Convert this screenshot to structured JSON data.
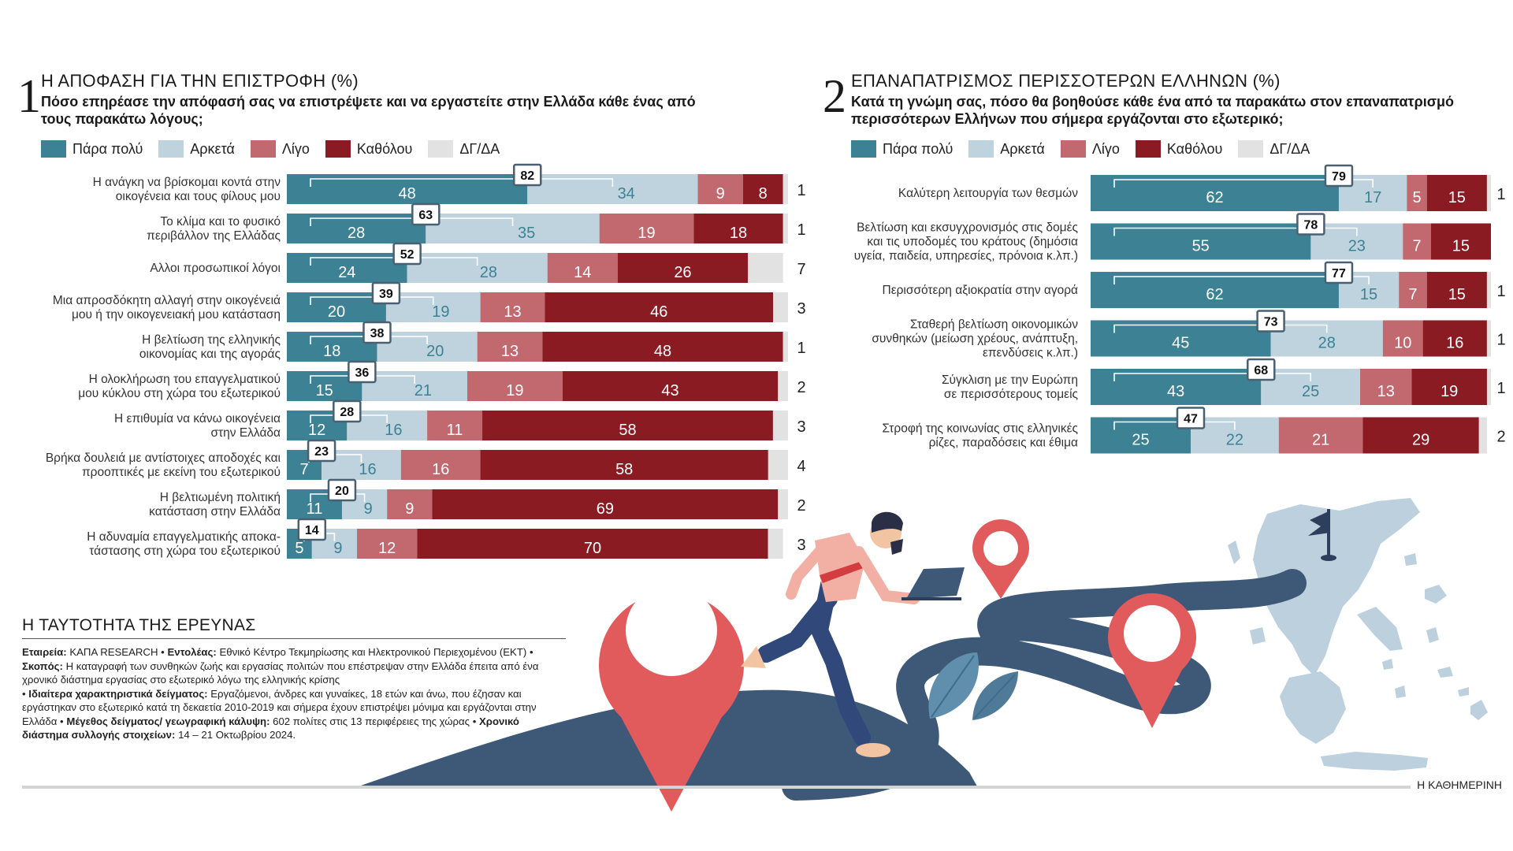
{
  "colors": {
    "very_much": "#3c8194",
    "quite": "#bfd3de",
    "little": "#c1696f",
    "not_at_all": "#8a1b22",
    "dk": "#e2e2e2",
    "label_on_light": "#3c8194",
    "dark_blue": "#3e5878",
    "pin_red": "#e15a5c"
  },
  "legend": {
    "items": [
      {
        "key": "very_much",
        "label": "Πάρα πολύ"
      },
      {
        "key": "quite",
        "label": "Αρκετά"
      },
      {
        "key": "little",
        "label": "Λίγο"
      },
      {
        "key": "not_at_all",
        "label": "Καθόλου"
      },
      {
        "key": "dk",
        "label": "ΔΓ/ΔΑ"
      }
    ]
  },
  "panel1": {
    "number": "1",
    "title": "Η ΑΠΟΦΑΣΗ ΓΙΑ ΤΗΝ ΕΠΙΣΤΡΟΦΗ (%)",
    "question": "Πόσο επηρέασε την απόφασή σας να επιστρέψετε και να εργαστείτε στην Ελλάδα κάθε ένας από τους παρακάτω λόγους;"
  },
  "panel2": {
    "number": "2",
    "title": "ΕΠΑΝΑΠΑΤΡΙΣΜΟΣ ΠΕΡΙΣΣΟΤΕΡΩΝ ΕΛΛΗΝΩΝ (%)",
    "question": "Κατά τη γνώμη σας, πόσο θα βοηθούσε κάθε ένα από τα παρακάτω στον επαναπατρισμό περισσότερων Ελλήνων που σήμερα εργάζονται στο εξωτερικό;"
  },
  "chart_data": [
    {
      "type": "bar",
      "orientation": "horizontal",
      "stacked": true,
      "title": "Η ΑΠΟΦΑΣΗ ΓΙΑ ΤΗΝ ΕΠΙΣΤΡΟΦΗ (%)",
      "segments": [
        "Πάρα πολύ",
        "Αρκετά",
        "Λίγο",
        "Καθόλου",
        "ΔΓ/ΔΑ"
      ],
      "callout_meaning": "Πάρα πολύ + Αρκετά",
      "xlim": [
        0,
        100
      ],
      "rows": [
        {
          "label": [
            "Η ανάγκη να βρίσκομαι κοντά στην",
            "οικογένεια και τους φίλους μου"
          ],
          "values": [
            48,
            34,
            9,
            8,
            1
          ],
          "combined": 82
        },
        {
          "label": [
            "Το κλίμα και το φυσικό",
            "περιβάλλον της Ελλάδας"
          ],
          "values": [
            28,
            35,
            19,
            18,
            1
          ],
          "combined": 63
        },
        {
          "label": [
            "Αλλοι προσωπικοί λόγοι"
          ],
          "values": [
            24,
            28,
            14,
            26,
            7
          ],
          "combined": 52
        },
        {
          "label": [
            "Μια απροσδόκητη αλλαγή στην οικογένειά",
            "μου ή την οικογενειακή μου κατάσταση"
          ],
          "values": [
            20,
            19,
            13,
            46,
            3
          ],
          "combined": 39
        },
        {
          "label": [
            "Η βελτίωση της ελληνικής",
            "οικονομίας και της αγοράς"
          ],
          "values": [
            18,
            20,
            13,
            48,
            1
          ],
          "combined": 38
        },
        {
          "label": [
            "Η ολοκλήρωση του επαγγελματικού",
            "μου κύκλου στη χώρα του εξωτερικού"
          ],
          "values": [
            15,
            21,
            19,
            43,
            2
          ],
          "combined": 36
        },
        {
          "label": [
            "Η επιθυμία να κάνω οικογένεια",
            "στην Ελλάδα"
          ],
          "values": [
            12,
            16,
            11,
            58,
            3
          ],
          "combined": 28
        },
        {
          "label": [
            "Βρήκα δουλειά με αντίστοιχες αποδοχές και",
            "προοπτικές με εκείνη του εξωτερικού"
          ],
          "values": [
            7,
            16,
            16,
            58,
            4
          ],
          "combined": 23
        },
        {
          "label": [
            "Η βελτιωμένη πολιτική",
            "κατάσταση στην Ελλάδα"
          ],
          "values": [
            11,
            9,
            9,
            69,
            2
          ],
          "combined": 20
        },
        {
          "label": [
            "Η αδυναμία επαγγελματικής αποκα-",
            "τάστασης στη χώρα του εξωτερικού"
          ],
          "values": [
            5,
            9,
            12,
            70,
            3
          ],
          "combined": 14
        }
      ]
    },
    {
      "type": "bar",
      "orientation": "horizontal",
      "stacked": true,
      "title": "ΕΠΑΝΑΠΑΤΡΙΣΜΟΣ ΠΕΡΙΣΣΟΤΕΡΩΝ ΕΛΛΗΝΩΝ (%)",
      "segments": [
        "Πάρα πολύ",
        "Αρκετά",
        "Λίγο",
        "Καθόλου",
        "ΔΓ/ΔΑ"
      ],
      "callout_meaning": "Πάρα πολύ + Αρκετά",
      "xlim": [
        0,
        100
      ],
      "rows": [
        {
          "label": [
            "Καλύτερη λειτουργία των θεσμών"
          ],
          "values": [
            62,
            17,
            5,
            15,
            1
          ],
          "combined": 79
        },
        {
          "label": [
            "Βελτίωση και εκσυγχρονισμός στις δομές",
            "και τις υποδομές του κράτους (δημόσια",
            "υγεία, παιδεία, υπηρεσίες, πρόνοια κ.λπ.)"
          ],
          "values": [
            55,
            23,
            7,
            15,
            null
          ],
          "combined": 78
        },
        {
          "label": [
            "Περισσότερη αξιοκρατία στην αγορά"
          ],
          "values": [
            62,
            15,
            7,
            15,
            1
          ],
          "combined": 77
        },
        {
          "label": [
            "Σταθερή βελτίωση οικονομικών",
            "συνθηκών (μείωση χρέους, ανάπτυξη,",
            "επενδύσεις κ.λπ.)"
          ],
          "values": [
            45,
            28,
            10,
            16,
            1
          ],
          "combined": 73
        },
        {
          "label": [
            "Σύγκλιση με την Ευρώπη",
            "σε περισσότερους τομείς"
          ],
          "values": [
            43,
            25,
            13,
            19,
            1
          ],
          "combined": 68
        },
        {
          "label": [
            "Στροφή της κοινωνίας στις ελληνικές",
            "ρίζες, παραδόσεις και έθιμα"
          ],
          "values": [
            25,
            22,
            21,
            29,
            2
          ],
          "combined": 47
        }
      ]
    }
  ],
  "survey": {
    "title": "Η ΤΑΥΤΟΤΗΤΑ ΤΗΣ ΕΡΕΥΝΑΣ",
    "company_label": "Εταιρεία:",
    "company": "ΚΑΠΑ RESEARCH",
    "client_label": "Εντολέας:",
    "client": "Εθνικό Κέντρο Τεκμηρίωσης και Ηλεκτρονικού Περιεχομένου (ΕΚΤ)",
    "purpose_label": "Σκοπός:",
    "purpose": "Η καταγραφή των συνθηκών ζωής και εργασίας πολιτών που επέστρεψαν στην Ελλάδα έπειτα από ένα χρονικό διάστημα εργασίας στο εξωτερικό λόγω της ελληνικής κρίσης",
    "sample_label": "Ιδιαίτερα χαρακτηριστικά δείγματος:",
    "sample": "Εργαζόμενοι, άνδρες και γυναίκες, 18 ετών και άνω, που έζησαν και εργάστηκαν στο εξωτερικό κατά τη δεκαετία 2010-2019 και σήμερα έχουν επιστρέψει μόνιμα και εργάζονται στην Ελλάδα",
    "size_label": "Μέγεθος δείγματος/ γεωγραφική κάλυψη:",
    "size": "602 πολίτες στις 13 περιφέρειες της χώρας",
    "period_label": "Χρονικό διάστημα συλλογής στοιχείων:",
    "period": "14 – 21 Οκτωβρίου 2024."
  },
  "credit": "Η ΚΑΘΗΜΕΡΙΝΗ"
}
